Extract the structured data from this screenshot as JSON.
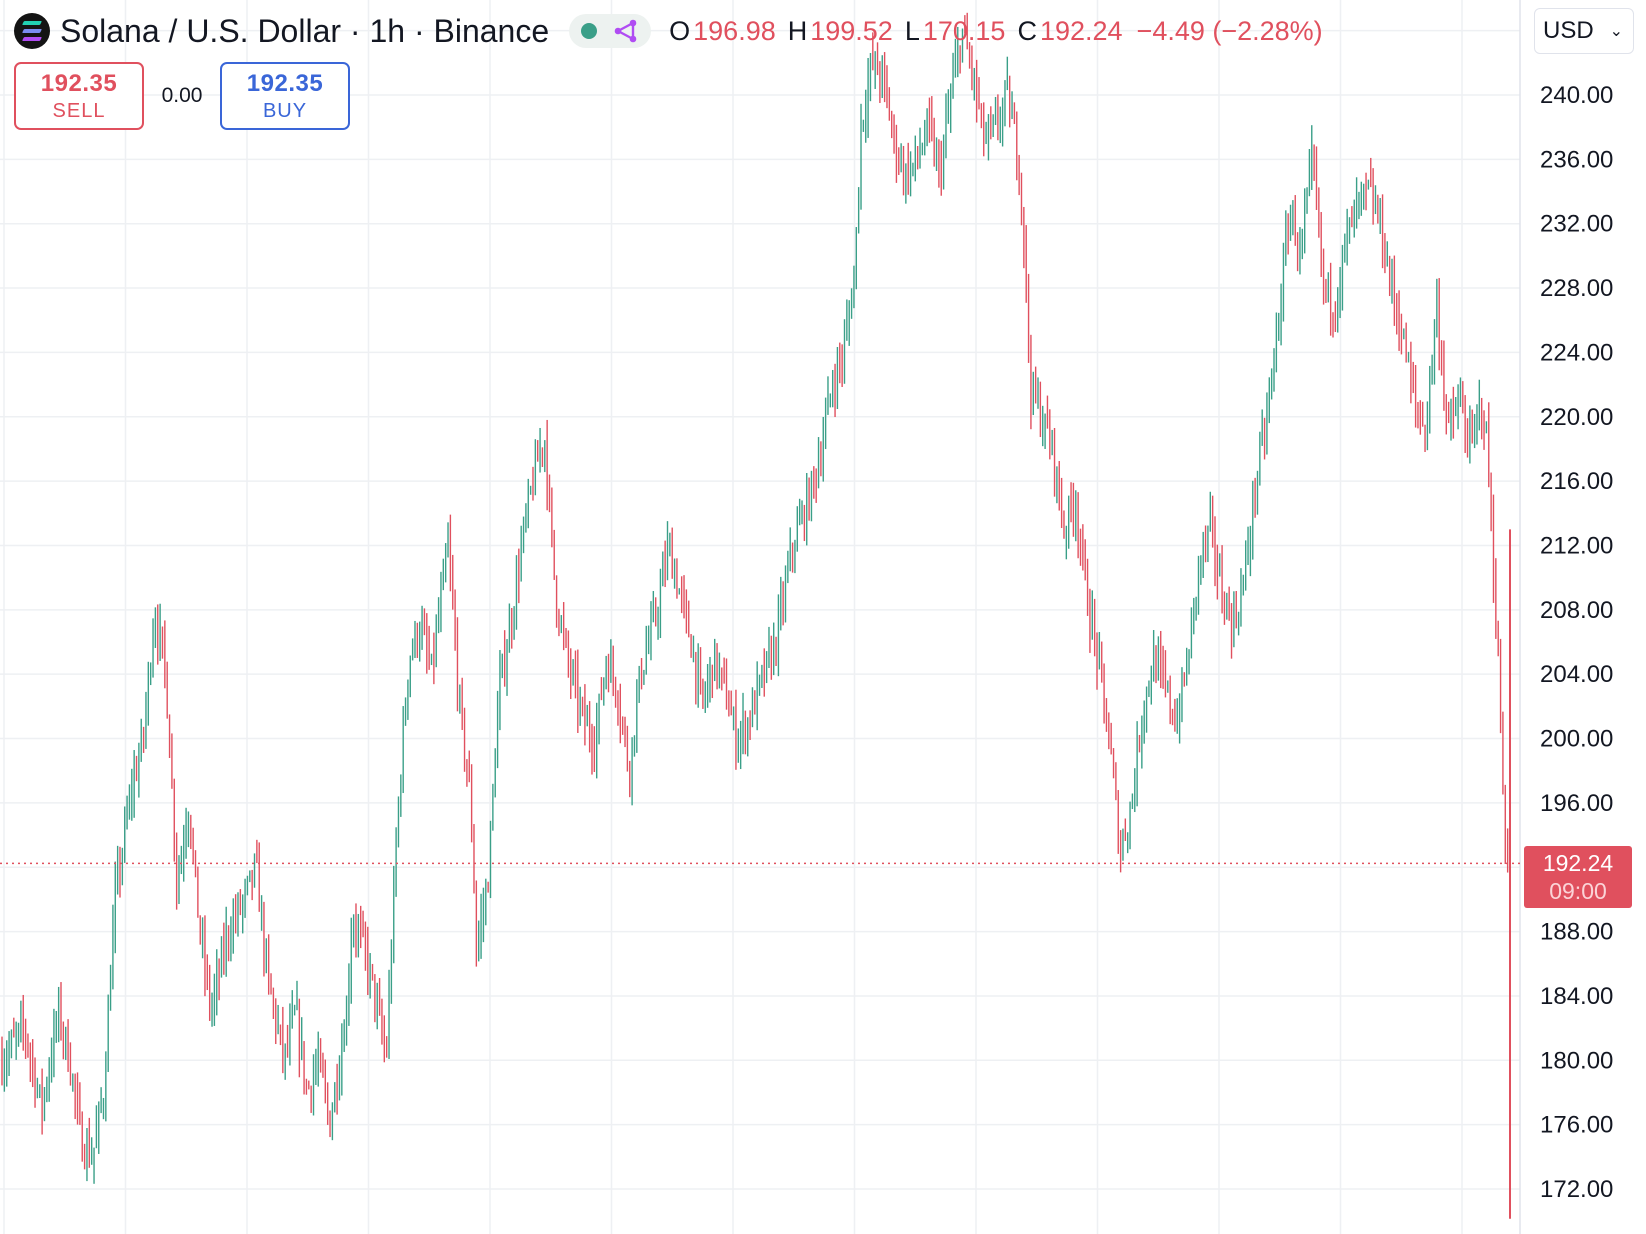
{
  "header": {
    "symbol_title": "Solana / U.S. Dollar · 1h · Binance",
    "ohlc": {
      "open_label": "O",
      "open": "196.98",
      "high_label": "H",
      "high": "199.52",
      "low_label": "L",
      "low": "170.15",
      "close_label": "C",
      "close": "192.24",
      "change": "−4.49 (−2.28%)"
    },
    "currency": "USD"
  },
  "trade": {
    "sell_price": "192.35",
    "sell_label": "SELL",
    "spread": "0.00",
    "buy_price": "192.35",
    "buy_label": "BUY"
  },
  "last_price": {
    "value": "192.24",
    "countdown": "09:00"
  },
  "icons": {
    "logo": "solana-logo-icon",
    "status": "market-open-dot-icon",
    "data_link": "data-sharing-icon",
    "dropdown": "chevron-down-icon"
  },
  "colors": {
    "up": "#3a9f88",
    "down": "#e0505e",
    "buy": "#3a66d8",
    "grid": "#eef0f3",
    "axis_text": "#131722"
  },
  "chart_data": {
    "type": "candlestick",
    "y_axis_side": "right",
    "y_ticks": [
      "240.00",
      "236.00",
      "232.00",
      "228.00",
      "224.00",
      "220.00",
      "216.00",
      "212.00",
      "208.00",
      "204.00",
      "200.00",
      "196.00",
      "188.00",
      "184.00",
      "180.00",
      "176.00",
      "172.00"
    ],
    "y_range": [
      169.3,
      246
    ],
    "last_price": 192.24,
    "price_path": [
      [
        0,
        180
      ],
      [
        4,
        182
      ],
      [
        7,
        177
      ],
      [
        10,
        183
      ],
      [
        12,
        180
      ],
      [
        14,
        175
      ],
      [
        16,
        174
      ],
      [
        18,
        178
      ],
      [
        20,
        190
      ],
      [
        23,
        197
      ],
      [
        25,
        200
      ],
      [
        27,
        208
      ],
      [
        29,
        204
      ],
      [
        31,
        191
      ],
      [
        33,
        196
      ],
      [
        35,
        188
      ],
      [
        37,
        183
      ],
      [
        40,
        188
      ],
      [
        43,
        190
      ],
      [
        45,
        192
      ],
      [
        47,
        185
      ],
      [
        50,
        180
      ],
      [
        52,
        183
      ],
      [
        54,
        178
      ],
      [
        56,
        180
      ],
      [
        58,
        176
      ],
      [
        61,
        183
      ],
      [
        62,
        189
      ],
      [
        64,
        187
      ],
      [
        66,
        184
      ],
      [
        68,
        180
      ],
      [
        70,
        195
      ],
      [
        72,
        205
      ],
      [
        74,
        207
      ],
      [
        76,
        204
      ],
      [
        79,
        212
      ],
      [
        81,
        202
      ],
      [
        83,
        196
      ],
      [
        84,
        187
      ],
      [
        86,
        191
      ],
      [
        88,
        203
      ],
      [
        90,
        207
      ],
      [
        92,
        212
      ],
      [
        94,
        216
      ],
      [
        96,
        219
      ],
      [
        98,
        209
      ],
      [
        100,
        205
      ],
      [
        103,
        201
      ],
      [
        105,
        200
      ],
      [
        107,
        205
      ],
      [
        109,
        203
      ],
      [
        111,
        198
      ],
      [
        113,
        204
      ],
      [
        116,
        208
      ],
      [
        118,
        212
      ],
      [
        120,
        209
      ],
      [
        122,
        206
      ],
      [
        124,
        202
      ],
      [
        126,
        205
      ],
      [
        128,
        203
      ],
      [
        130,
        200
      ],
      [
        132,
        201
      ],
      [
        134,
        203
      ],
      [
        137,
        206
      ],
      [
        140,
        212
      ],
      [
        143,
        215
      ],
      [
        145,
        218
      ],
      [
        147,
        222
      ],
      [
        149,
        224
      ],
      [
        151,
        229
      ],
      [
        152,
        238
      ],
      [
        154,
        242
      ],
      [
        156,
        241
      ],
      [
        158,
        237
      ],
      [
        160,
        235
      ],
      [
        162,
        236
      ],
      [
        164,
        238
      ],
      [
        166,
        235
      ],
      [
        168,
        240
      ],
      [
        170,
        244
      ],
      [
        172,
        241
      ],
      [
        174,
        237
      ],
      [
        176,
        238
      ],
      [
        178,
        240
      ],
      [
        180,
        236
      ],
      [
        181,
        231
      ],
      [
        182,
        222
      ],
      [
        184,
        220
      ],
      [
        186,
        218
      ],
      [
        188,
        213
      ],
      [
        190,
        215
      ],
      [
        192,
        209
      ],
      [
        194,
        205
      ],
      [
        196,
        200
      ],
      [
        198,
        193
      ],
      [
        200,
        196
      ],
      [
        202,
        202
      ],
      [
        204,
        205
      ],
      [
        206,
        203
      ],
      [
        208,
        201
      ],
      [
        210,
        205
      ],
      [
        212,
        211
      ],
      [
        214,
        213
      ],
      [
        216,
        209
      ],
      [
        218,
        207
      ],
      [
        220,
        210
      ],
      [
        222,
        216
      ],
      [
        224,
        220
      ],
      [
        226,
        226
      ],
      [
        228,
        233
      ],
      [
        230,
        230
      ],
      [
        232,
        236
      ],
      [
        234,
        228
      ],
      [
        236,
        227
      ],
      [
        238,
        231
      ],
      [
        240,
        233
      ],
      [
        242,
        234
      ],
      [
        244,
        232
      ],
      [
        246,
        228
      ],
      [
        248,
        225
      ],
      [
        250,
        221
      ],
      [
        252,
        219
      ],
      [
        254,
        227
      ],
      [
        256,
        219
      ],
      [
        258,
        221
      ],
      [
        260,
        218
      ],
      [
        262,
        221
      ],
      [
        263,
        218
      ],
      [
        265,
        204
      ],
      [
        266,
        194
      ],
      [
        267,
        192.24
      ]
    ],
    "markers": {
      "max_price": 244,
      "min_price": 170.15
    }
  }
}
